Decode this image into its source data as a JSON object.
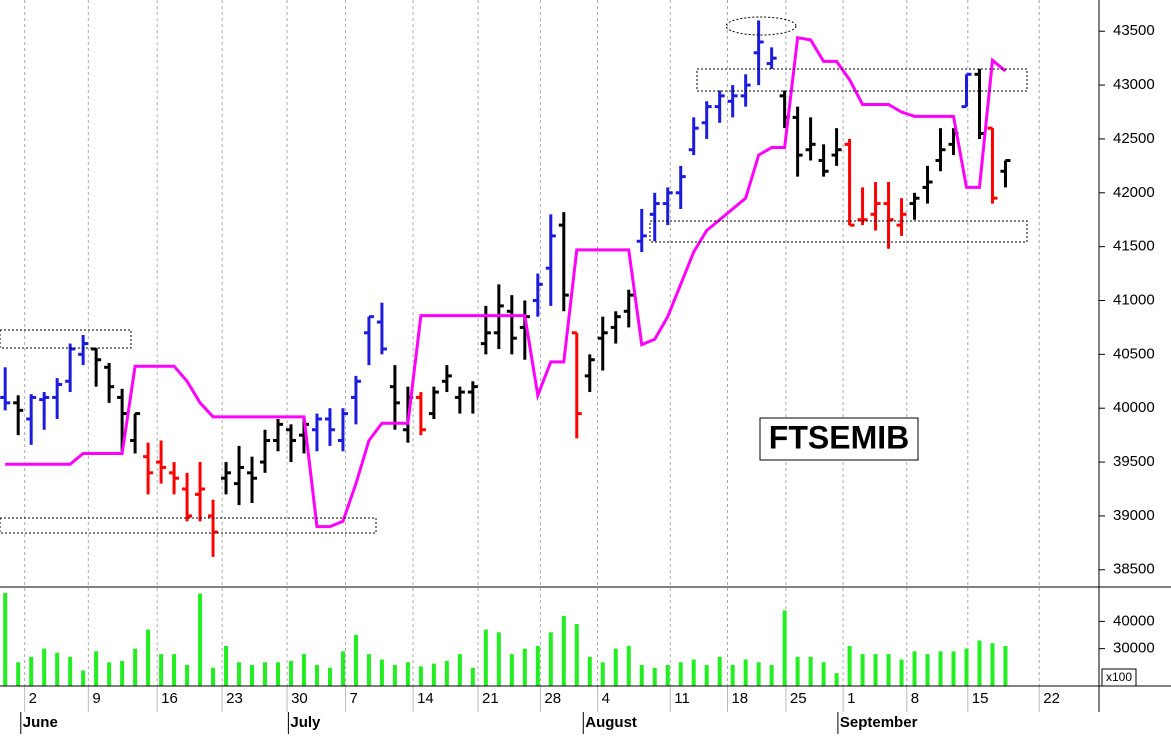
{
  "chart_data": [
    {
      "type": "ohlc",
      "title": "FTSEMIB",
      "open": [
        40100,
        40050,
        39900,
        40080,
        40100,
        40250,
        40500,
        40550,
        40380,
        40100,
        39700,
        39550,
        39500,
        39400,
        39250,
        39200,
        39000,
        39350,
        39300,
        39400,
        39500,
        39700,
        39800,
        39750,
        39800,
        39900,
        39700,
        40100,
        40700,
        40800,
        40200,
        39800,
        40100,
        39950,
        40250,
        40100,
        40150,
        40600,
        40700,
        40900,
        40750,
        41000,
        41300,
        41700,
        40700,
        40300,
        40650,
        40750,
        40900,
        41550,
        41800,
        41900,
        42000,
        42400,
        42650,
        42800,
        42850,
        42900,
        43300,
        43200,
        42900,
        42700,
        42400,
        42300,
        42350,
        42450,
        41750,
        41800,
        41900,
        41700,
        41900,
        42050,
        42300,
        42450,
        42800,
        43100,
        42600,
        42200
      ],
      "high": [
        40380,
        40120,
        40130,
        40150,
        40280,
        40600,
        40680,
        40560,
        40420,
        40180,
        39950,
        39680,
        39700,
        39500,
        39400,
        39500,
        39150,
        39500,
        39650,
        39550,
        39800,
        39900,
        39850,
        39900,
        39950,
        40000,
        40000,
        40300,
        40850,
        40980,
        40400,
        40200,
        40150,
        40200,
        40400,
        40200,
        40250,
        40950,
        41150,
        41050,
        41000,
        41250,
        41800,
        41820,
        40700,
        40500,
        40850,
        40900,
        41100,
        41850,
        42000,
        42050,
        42250,
        42700,
        42850,
        42950,
        43000,
        43100,
        43600,
        43350,
        42950,
        42800,
        42700,
        42450,
        42600,
        42500,
        42050,
        42100,
        42100,
        41950,
        42000,
        42250,
        42600,
        42600,
        43100,
        43150,
        42600,
        42300
      ],
      "low": [
        39980,
        39750,
        39660,
        39800,
        39900,
        40150,
        40400,
        40200,
        40050,
        39600,
        39580,
        39200,
        39300,
        39200,
        38950,
        38950,
        38620,
        39200,
        39100,
        39120,
        39400,
        39600,
        39500,
        39580,
        39600,
        39650,
        39600,
        39850,
        40400,
        40500,
        39800,
        39680,
        39750,
        39900,
        40150,
        39950,
        39950,
        40500,
        40550,
        40500,
        40450,
        40850,
        40950,
        40900,
        39720,
        40150,
        40350,
        40600,
        40750,
        41450,
        41550,
        41700,
        41850,
        42350,
        42500,
        42650,
        42700,
        42800,
        43000,
        43150,
        42600,
        42150,
        42300,
        42150,
        42250,
        41700,
        41700,
        41650,
        41480,
        41600,
        41750,
        41900,
        42200,
        42350,
        42800,
        42500,
        41900,
        42050
      ],
      "close": [
        40050,
        39980,
        40100,
        40100,
        40220,
        40550,
        40600,
        40450,
        40200,
        39950,
        39950,
        39400,
        39450,
        39350,
        39000,
        39250,
        38850,
        39400,
        39450,
        39350,
        39700,
        39850,
        39700,
        39850,
        39900,
        39800,
        39950,
        40250,
        40850,
        40550,
        40050,
        40100,
        39800,
        40150,
        40300,
        40150,
        40200,
        40700,
        40950,
        40650,
        40850,
        41150,
        41600,
        41050,
        39950,
        40450,
        40700,
        40850,
        41050,
        41600,
        41900,
        42000,
        42150,
        42600,
        42800,
        42900,
        42900,
        43000,
        43400,
        43250,
        42700,
        42350,
        42450,
        42200,
        42400,
        41700,
        41750,
        41900,
        41750,
        41800,
        41950,
        42100,
        42400,
        42550,
        43100,
        42550,
        41950,
        42300
      ],
      "bar_colors": [
        "#1c1cdc",
        "#000000",
        "#1c1cdc",
        "#1c1cdc",
        "#1c1cdc",
        "#1c1cdc",
        "#1c1cdc",
        "#000000",
        "#000000",
        "#000000",
        "#000000",
        "#ff0000",
        "#ff0000",
        "#ff0000",
        "#ff0000",
        "#ff0000",
        "#ff0000",
        "#000000",
        "#000000",
        "#000000",
        "#000000",
        "#000000",
        "#000000",
        "#000000",
        "#1c1cdc",
        "#1c1cdc",
        "#1c1cdc",
        "#1c1cdc",
        "#1c1cdc",
        "#1c1cdc",
        "#000000",
        "#000000",
        "#ff0000",
        "#000000",
        "#000000",
        "#000000",
        "#000000",
        "#000000",
        "#000000",
        "#000000",
        "#000000",
        "#1c1cdc",
        "#1c1cdc",
        "#000000",
        "#ff0000",
        "#000000",
        "#000000",
        "#000000",
        "#000000",
        "#1c1cdc",
        "#1c1cdc",
        "#1c1cdc",
        "#1c1cdc",
        "#1c1cdc",
        "#1c1cdc",
        "#1c1cdc",
        "#1c1cdc",
        "#1c1cdc",
        "#1c1cdc",
        "#1c1cdc",
        "#000000",
        "#000000",
        "#000000",
        "#000000",
        "#000000",
        "#ff0000",
        "#ff0000",
        "#ff0000",
        "#ff0000",
        "#ff0000",
        "#000000",
        "#000000",
        "#000000",
        "#000000",
        "#1c1cdc",
        "#000000",
        "#ff0000",
        "#000000"
      ],
      "line": {
        "color": "#ff00ff",
        "values": [
          39480,
          39480,
          39480,
          39480,
          39480,
          39480,
          39580,
          39580,
          39580,
          39580,
          40390,
          40390,
          40390,
          40390,
          40250,
          40050,
          39920,
          39920,
          39920,
          39920,
          39920,
          39920,
          39920,
          39920,
          38900,
          38900,
          38950,
          39300,
          39700,
          39860,
          39860,
          39860,
          40860,
          40860,
          40860,
          40860,
          40860,
          40860,
          40860,
          40860,
          40860,
          40120,
          40430,
          40430,
          41470,
          41470,
          41470,
          41470,
          41470,
          40590,
          40640,
          40850,
          41150,
          41450,
          41650,
          41750,
          41850,
          41950,
          42350,
          42420,
          42420,
          43440,
          43420,
          43220,
          43220,
          43050,
          42820,
          42820,
          42820,
          42750,
          42710,
          42710,
          42710,
          42710,
          42050,
          42050,
          43230,
          43130
        ]
      },
      "xlim": [
        -0.4,
        84.2
      ],
      "xticks": [
        {
          "value": 1.5,
          "label": "2"
        },
        {
          "value": 6.4,
          "label": "9"
        },
        {
          "value": 11.7,
          "label": "16"
        },
        {
          "value": 16.7,
          "label": "23"
        },
        {
          "value": 21.7,
          "label": "30"
        },
        {
          "value": 26.2,
          "label": "7"
        },
        {
          "value": 31.4,
          "label": "14"
        },
        {
          "value": 36.4,
          "label": "21"
        },
        {
          "value": 41.2,
          "label": "28"
        },
        {
          "value": 45.6,
          "label": "4"
        },
        {
          "value": 51.2,
          "label": "11"
        },
        {
          "value": 55.6,
          "label": "18"
        },
        {
          "value": 60.1,
          "label": "25"
        },
        {
          "value": 64.5,
          "label": "1"
        },
        {
          "value": 69.4,
          "label": "8"
        },
        {
          "value": 74.1,
          "label": "15"
        },
        {
          "value": 79.6,
          "label": "22"
        }
      ],
      "months": [
        {
          "value": 1.2,
          "label": "June"
        },
        {
          "value": 21.8,
          "label": "July"
        },
        {
          "value": 44.5,
          "label": "August"
        },
        {
          "value": 64.1,
          "label": "September"
        }
      ],
      "ylim": [
        38340,
        43790
      ],
      "yticks": [
        38500,
        39000,
        39500,
        40000,
        40500,
        41000,
        41500,
        42000,
        42500,
        43000,
        43500
      ],
      "grid": true
    },
    {
      "type": "bar",
      "y_label": "x100",
      "color": "#22ee22",
      "values": [
        50400,
        25000,
        27000,
        30000,
        28500,
        27000,
        22000,
        29000,
        25000,
        25500,
        30000,
        37000,
        28000,
        28000,
        24000,
        50200,
        23000,
        31000,
        25000,
        24000,
        25000,
        25000,
        25500,
        28000,
        24000,
        23000,
        29000,
        35000,
        28000,
        26000,
        24000,
        25000,
        23500,
        24500,
        25500,
        28000,
        23000,
        37000,
        36000,
        28000,
        30000,
        31000,
        36000,
        42000,
        39000,
        27000,
        25000,
        30000,
        31000,
        24000,
        23000,
        24000,
        25000,
        26000,
        24000,
        27000,
        24000,
        26000,
        25000,
        24000,
        44000,
        27000,
        27000,
        25000,
        21000,
        31000,
        28000,
        28000,
        28000,
        26000,
        29000,
        28000,
        29000,
        29000,
        30000,
        33000,
        32000,
        31000
      ],
      "ylim": [
        16300,
        52600
      ],
      "yticks": [
        30000,
        40000
      ]
    }
  ]
}
